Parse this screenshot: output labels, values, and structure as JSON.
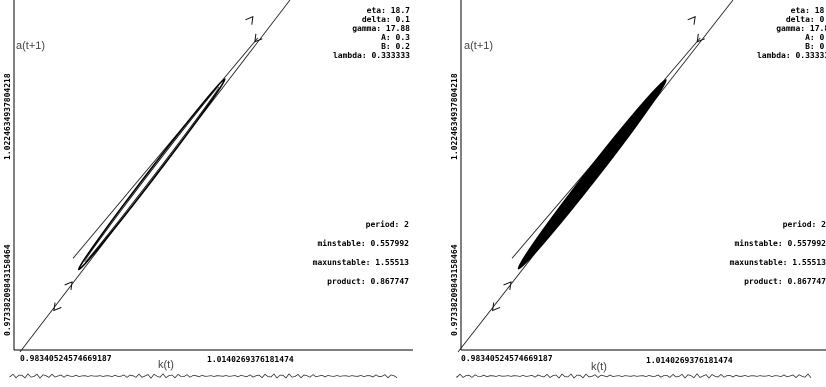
{
  "chart_data": [
    {
      "type": "line",
      "axis_labels": {
        "x": "k(t)",
        "y": "a(t+1)"
      },
      "x_ticks": {
        "min": "0.983405245746691​87",
        "max": "1.0140269376181474"
      },
      "y_ticks": {
        "min": "0.9733820984315846​4",
        "max": "1.0224634937804218"
      },
      "params": [
        {
          "label": "eta",
          "value": "18.7"
        },
        {
          "label": "delta",
          "value": "0.1"
        },
        {
          "label": "gamma",
          "value": "17.88"
        },
        {
          "label": "A",
          "value": "0.3"
        },
        {
          "label": "B",
          "value": "0.2"
        },
        {
          "label": "lambda",
          "value": "0.333333"
        }
      ],
      "stats": [
        {
          "label": "period",
          "value": "2"
        },
        {
          "label": "minstable",
          "value": "0.557992"
        },
        {
          "label": "maxunstable",
          "value": "1.55513"
        },
        {
          "label": "product",
          "value": "0.867747"
        }
      ],
      "series": [
        {
          "values": [
            [
              0.9834,
              0.9734
            ],
            [
              1.017,
              1.0245
            ]
          ]
        },
        {
          "values": [
            [
              0.99,
              0.987
            ],
            [
              1.013,
              1.019
            ]
          ]
        }
      ],
      "orbit": "thin-ellipse"
    },
    {
      "type": "line",
      "axis_labels": {
        "x": "k(t)",
        "y": "a(t+1)"
      },
      "x_ticks": {
        "min": "0.983405245746691​87",
        "max": "1.0140269376181474"
      },
      "y_ticks": {
        "min": "0.9733820984315846​4",
        "max": "1.0224634937804218"
      },
      "params": [
        {
          "label": "eta",
          "value": "18.7"
        },
        {
          "label": "delta",
          "value": "0.1"
        },
        {
          "label": "gamma",
          "value": "17.88"
        },
        {
          "label": "A",
          "value": "0.3"
        },
        {
          "label": "B",
          "value": "0.2"
        },
        {
          "label": "lambda",
          "value": "0.333333"
        }
      ],
      "stats": [
        {
          "label": "period",
          "value": "2"
        },
        {
          "label": "minstable",
          "value": "0.557992"
        },
        {
          "label": "maxunstable",
          "value": "1.55513"
        },
        {
          "label": "product",
          "value": "0.867747"
        }
      ],
      "series": [
        {
          "values": [
            [
              0.9834,
              0.9734
            ],
            [
              1.017,
              1.0245
            ]
          ]
        },
        {
          "values": [
            [
              0.99,
              0.987
            ],
            [
              1.013,
              1.019
            ]
          ]
        }
      ],
      "orbit": "filled-band"
    }
  ]
}
